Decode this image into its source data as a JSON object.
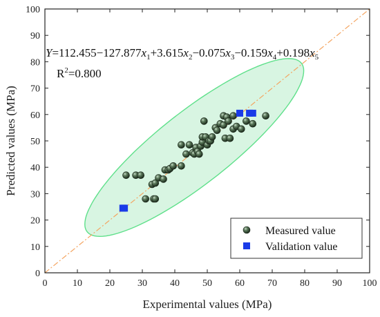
{
  "chart_data": {
    "type": "scatter",
    "xlabel": "Experimental values (MPa)",
    "ylabel": "Predicted values (MPa)",
    "xlim": [
      0,
      100
    ],
    "ylim": [
      0,
      100
    ],
    "xticks": [
      "0",
      "10",
      "20",
      "30",
      "40",
      "50",
      "60",
      "70",
      "80",
      "90",
      "100"
    ],
    "yticks": [
      "0",
      "10",
      "20",
      "30",
      "40",
      "50",
      "60",
      "70",
      "80",
      "90",
      "100"
    ],
    "equation": {
      "y_var": "Y",
      "eq": "=112.455−127.877",
      "x1": "x",
      "sub1": "1",
      "t2": "+3.615",
      "x2": "x",
      "sub2": "2",
      "t3": "−0.075",
      "x3": "x",
      "sub3": "3",
      "t4": "−0.159",
      "x4": "x",
      "sub4": "4",
      "t5": "+0.198",
      "x5": "x",
      "sub5": "5"
    },
    "r2": {
      "base": "R",
      "sup": "2",
      "value": "=0.800"
    },
    "reference_line": {
      "style": "dash-dot",
      "color": "#f4a460",
      "from": [
        0,
        0
      ],
      "to": [
        100,
        100
      ]
    },
    "confidence_ellipse": {
      "fill": "#d8f5e2",
      "stroke": "#5ee08a",
      "center": [
        46,
        47.5
      ],
      "semi_major": 46,
      "semi_minor": 12.5,
      "angle_deg": 45
    },
    "legend_position": "bottom-right",
    "series": [
      {
        "name": "Measured value",
        "marker": "sphere",
        "color": "#2f4a2f",
        "points": [
          [
            25,
            37
          ],
          [
            28,
            37
          ],
          [
            29.5,
            37
          ],
          [
            31,
            28
          ],
          [
            33,
            33.5
          ],
          [
            33.5,
            28
          ],
          [
            34,
            34
          ],
          [
            34,
            28
          ],
          [
            35,
            36
          ],
          [
            36.5,
            35.5
          ],
          [
            37,
            39
          ],
          [
            38,
            39
          ],
          [
            38.5,
            39.5
          ],
          [
            39.5,
            40.5
          ],
          [
            42,
            40.5
          ],
          [
            42,
            48.5
          ],
          [
            43.5,
            45
          ],
          [
            44.5,
            48.5
          ],
          [
            45.5,
            45.5
          ],
          [
            46,
            45
          ],
          [
            46.5,
            47.5
          ],
          [
            47,
            46
          ],
          [
            47.5,
            45
          ],
          [
            48,
            48
          ],
          [
            48.5,
            49.5
          ],
          [
            48.5,
            51.5
          ],
          [
            49,
            57.5
          ],
          [
            49.5,
            51.5
          ],
          [
            50,
            48.5
          ],
          [
            50.5,
            50
          ],
          [
            51,
            50
          ],
          [
            51.5,
            51.5
          ],
          [
            52.5,
            55
          ],
          [
            53,
            54
          ],
          [
            54,
            56.5
          ],
          [
            55,
            56
          ],
          [
            55,
            59.5
          ],
          [
            55.5,
            51
          ],
          [
            56,
            59
          ],
          [
            56.5,
            57.5
          ],
          [
            57,
            51
          ],
          [
            58,
            59.5
          ],
          [
            58,
            54.5
          ],
          [
            59,
            55.5
          ],
          [
            60.5,
            54.5
          ],
          [
            62,
            57.5
          ],
          [
            64,
            56.5
          ],
          [
            68,
            59.5
          ]
        ]
      },
      {
        "name": "Validation value",
        "marker": "square",
        "color": "#1a3be8",
        "points": [
          [
            24,
            24.5
          ],
          [
            24.5,
            24.5
          ],
          [
            60,
            60.5
          ],
          [
            63,
            60.5
          ],
          [
            64,
            60.5
          ]
        ]
      }
    ]
  }
}
